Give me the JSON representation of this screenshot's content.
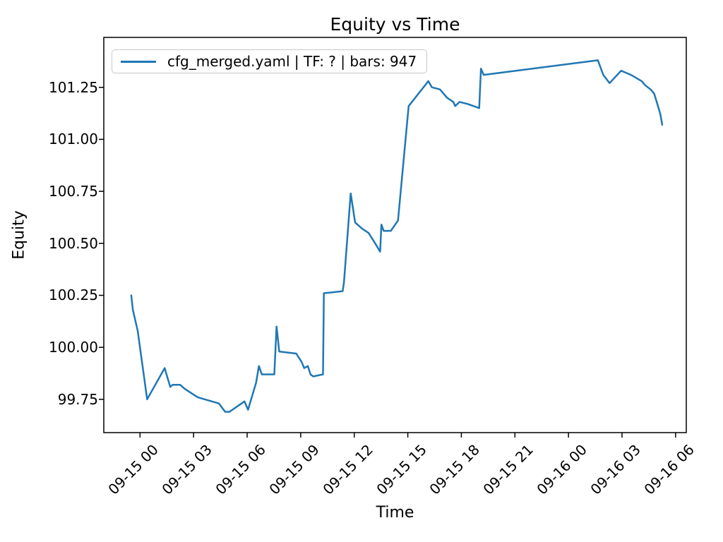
{
  "figure": {
    "background": "#ffffff",
    "spine_color": "#000000",
    "tick_color": "#000000"
  },
  "chart_data": {
    "type": "line",
    "title": "Equity vs Time",
    "xlabel": "Time",
    "ylabel": "Equity",
    "grid": false,
    "legend_position": "upper-left",
    "x_unit": "hours relative to 09-15 00:00",
    "xlim": [
      -2.03,
      30.6
    ],
    "ylim": [
      99.59,
      101.49
    ],
    "x_ticks": {
      "positions": [
        0,
        3,
        6,
        9,
        12,
        15,
        18,
        21,
        24,
        27,
        30
      ],
      "labels": [
        "09-15 00",
        "09-15 03",
        "09-15 06",
        "09-15 09",
        "09-15 12",
        "09-15 15",
        "09-15 18",
        "09-15 21",
        "09-16 00",
        "09-16 03",
        "09-16 06"
      ]
    },
    "y_ticks": {
      "positions": [
        99.75,
        100.0,
        100.25,
        100.5,
        100.75,
        101.0,
        101.25
      ],
      "labels": [
        "99.75",
        "100.00",
        "100.25",
        "100.50",
        "100.75",
        "101.00",
        "101.25"
      ]
    },
    "series": [
      {
        "name": "cfg_merged.yaml | TF: ? | bars: 947",
        "color": "#1f77b4",
        "line_width": 2.5,
        "points": [
          [
            -0.49,
            100.25
          ],
          [
            -0.4,
            100.18
          ],
          [
            -0.13,
            100.08
          ],
          [
            0.4,
            99.75
          ],
          [
            1.38,
            99.9
          ],
          [
            1.69,
            99.81
          ],
          [
            1.83,
            99.82
          ],
          [
            2.24,
            99.82
          ],
          [
            2.51,
            99.8
          ],
          [
            3.23,
            99.76
          ],
          [
            4.42,
            99.73
          ],
          [
            4.77,
            99.69
          ],
          [
            5.01,
            99.69
          ],
          [
            5.85,
            99.74
          ],
          [
            6.05,
            99.7
          ],
          [
            6.5,
            99.83
          ],
          [
            6.66,
            99.91
          ],
          [
            6.82,
            99.87
          ],
          [
            7.52,
            99.87
          ],
          [
            7.65,
            100.1
          ],
          [
            7.8,
            99.98
          ],
          [
            8.75,
            99.97
          ],
          [
            9.05,
            99.93
          ],
          [
            9.2,
            99.9
          ],
          [
            9.4,
            99.91
          ],
          [
            9.55,
            99.87
          ],
          [
            9.7,
            99.86
          ],
          [
            10.25,
            99.87
          ],
          [
            10.3,
            100.26
          ],
          [
            11.35,
            100.27
          ],
          [
            11.42,
            100.31
          ],
          [
            11.8,
            100.74
          ],
          [
            12.05,
            100.6
          ],
          [
            12.45,
            100.57
          ],
          [
            12.8,
            100.55
          ],
          [
            13.1,
            100.51
          ],
          [
            13.45,
            100.46
          ],
          [
            13.52,
            100.59
          ],
          [
            13.65,
            100.56
          ],
          [
            14.05,
            100.56
          ],
          [
            14.45,
            100.61
          ],
          [
            15.05,
            101.16
          ],
          [
            16.15,
            101.28
          ],
          [
            16.35,
            101.25
          ],
          [
            16.8,
            101.24
          ],
          [
            17.2,
            101.2
          ],
          [
            17.55,
            101.18
          ],
          [
            17.65,
            101.16
          ],
          [
            17.9,
            101.18
          ],
          [
            18.35,
            101.17
          ],
          [
            19.0,
            101.15
          ],
          [
            19.1,
            101.34
          ],
          [
            19.25,
            101.31
          ],
          [
            25.65,
            101.38
          ],
          [
            25.95,
            101.31
          ],
          [
            26.3,
            101.27
          ],
          [
            26.95,
            101.33
          ],
          [
            27.5,
            101.31
          ],
          [
            28.1,
            101.28
          ],
          [
            28.3,
            101.26
          ],
          [
            28.6,
            101.24
          ],
          [
            28.8,
            101.22
          ],
          [
            29.05,
            101.15
          ],
          [
            29.15,
            101.12
          ],
          [
            29.25,
            101.07
          ]
        ]
      }
    ]
  }
}
